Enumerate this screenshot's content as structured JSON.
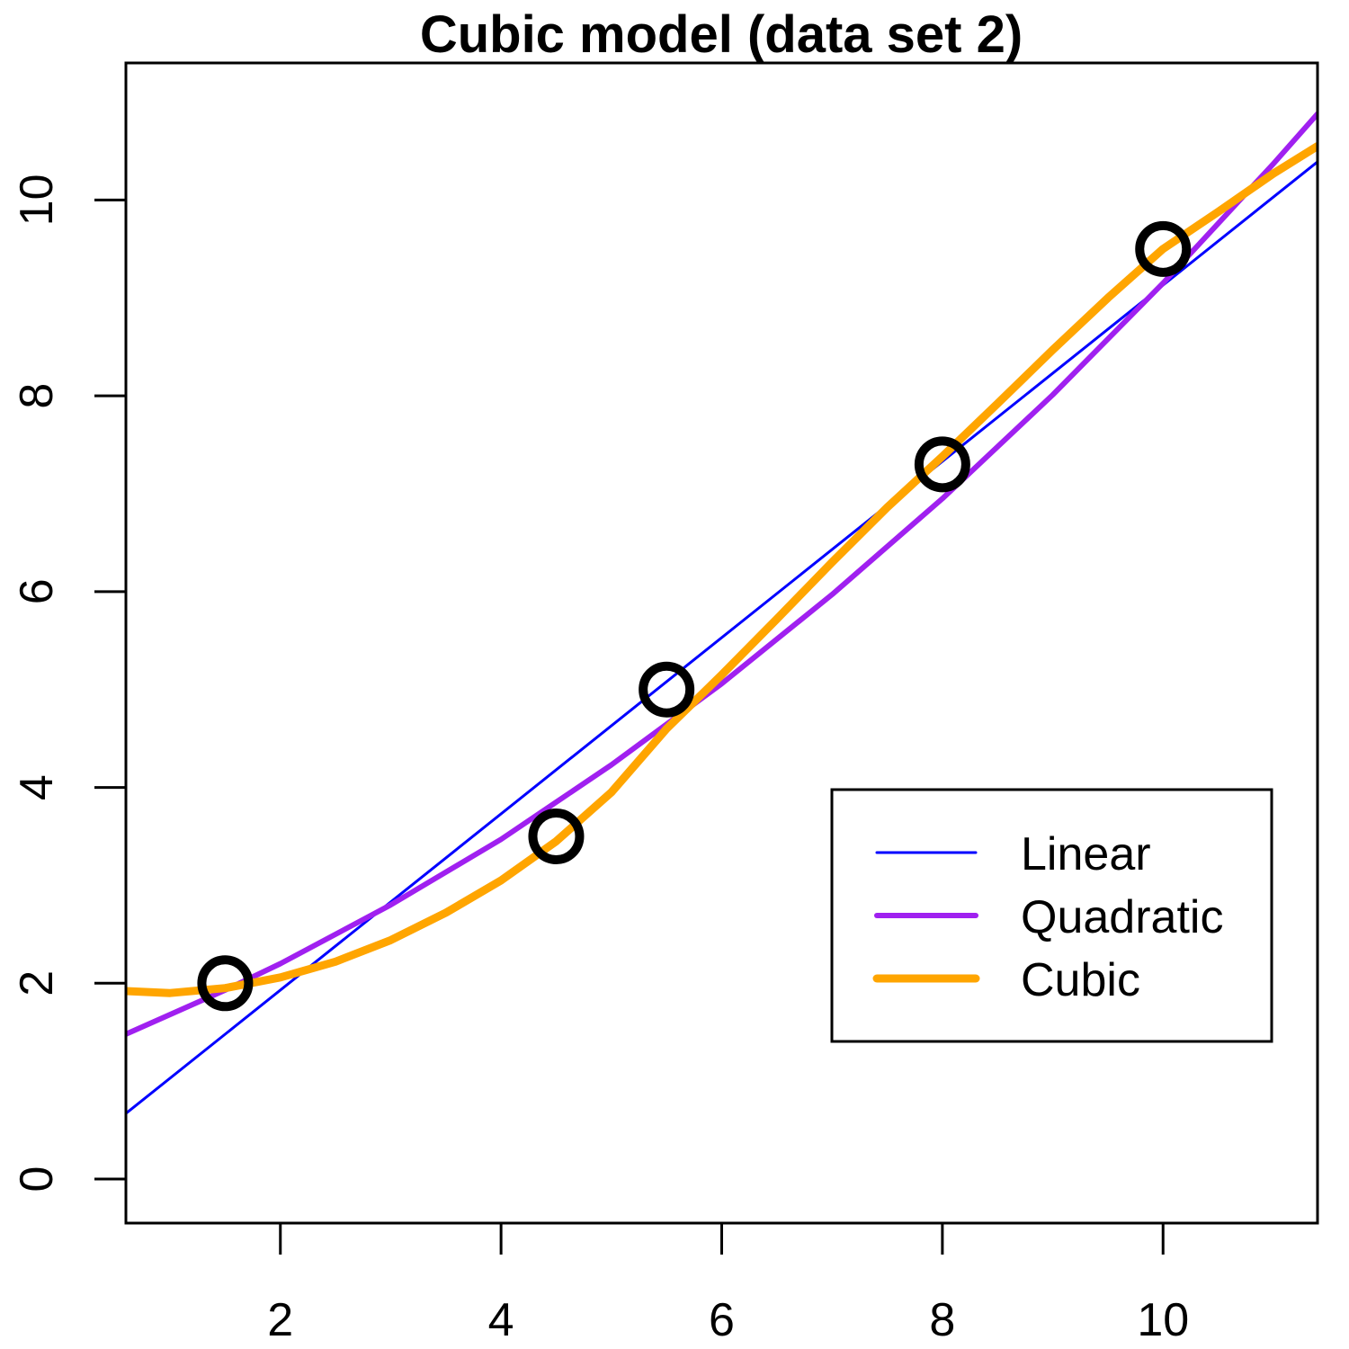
{
  "chart_data": {
    "type": "scatter",
    "title": "Cubic model (data set 2)",
    "xlabel": "",
    "ylabel": "",
    "xlim": [
      0.6,
      11.4
    ],
    "ylim": [
      -0.45,
      11.4
    ],
    "x_ticks": [
      2,
      4,
      6,
      8,
      10
    ],
    "y_ticks": [
      0,
      2,
      4,
      6,
      8,
      10
    ],
    "x_tick_labels": [
      "2",
      "4",
      "6",
      "8",
      "10"
    ],
    "y_tick_labels": [
      "0",
      "2",
      "4",
      "6",
      "8",
      "10"
    ],
    "points": {
      "x": [
        1.5,
        4.5,
        5.5,
        8,
        10
      ],
      "y": [
        2,
        3.5,
        5,
        7.3,
        9.5
      ]
    },
    "series": [
      {
        "name": "Linear",
        "kind": "fitted-curve",
        "color": "#0000ff",
        "x": [
          0.6,
          11.4
        ],
        "y": [
          0.67,
          10.39
        ]
      },
      {
        "name": "Quadratic",
        "kind": "fitted-curve",
        "color": "#a020f0",
        "x": [
          0.6,
          1.5,
          2,
          3,
          4,
          5,
          6,
          7,
          8,
          9,
          10,
          11,
          11.4
        ],
        "y": [
          1.48,
          1.93,
          2.2,
          2.8,
          3.47,
          4.23,
          5.06,
          5.97,
          6.95,
          8.01,
          9.15,
          10.37,
          10.88
        ]
      },
      {
        "name": "Cubic",
        "kind": "fitted-curve",
        "color": "#ffa500",
        "x": [
          0.6,
          1,
          1.5,
          2,
          2.5,
          3,
          3.5,
          4,
          4.5,
          5,
          5.5,
          6,
          6.5,
          7,
          7.5,
          8,
          8.5,
          9,
          9.5,
          10,
          10.5,
          11,
          11.4
        ],
        "y": [
          1.92,
          1.9,
          1.95,
          2.06,
          2.22,
          2.44,
          2.72,
          3.05,
          3.45,
          3.95,
          4.6,
          5.15,
          5.72,
          6.3,
          6.86,
          7.38,
          7.92,
          8.47,
          9,
          9.5,
          9.88,
          10.27,
          10.55
        ]
      }
    ],
    "legend": {
      "position": "bottom-right",
      "entries": [
        "Linear",
        "Quadratic",
        "Cubic"
      ]
    },
    "grid": false
  }
}
